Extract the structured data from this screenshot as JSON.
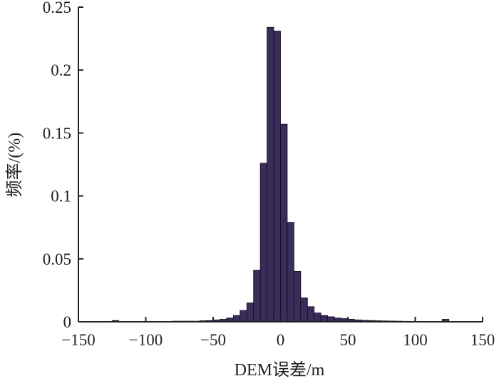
{
  "chart_data": {
    "type": "bar",
    "title": "",
    "xlabel": "DEM误差/m",
    "ylabel": "频率/(%)",
    "xlim": [
      -150,
      150
    ],
    "ylim": [
      0,
      0.25
    ],
    "xticks": [
      "−150",
      "−100",
      "−50",
      "0",
      "50",
      "100",
      "150"
    ],
    "yticks": [
      "0",
      "0.05",
      "0.1",
      "0.15",
      "0.2",
      "0.25"
    ],
    "bin_width": 5,
    "grid": false,
    "bar_color": "#3a2d5a",
    "bins": [
      {
        "x": -122.5,
        "value": 0.001
      },
      {
        "x": -77.5,
        "value": 0.0005
      },
      {
        "x": -72.5,
        "value": 0.0005
      },
      {
        "x": -67.5,
        "value": 0.0005
      },
      {
        "x": -62.5,
        "value": 0.0005
      },
      {
        "x": -57.5,
        "value": 0.0008
      },
      {
        "x": -52.5,
        "value": 0.001
      },
      {
        "x": -47.5,
        "value": 0.0015
      },
      {
        "x": -42.5,
        "value": 0.002
      },
      {
        "x": -37.5,
        "value": 0.003
      },
      {
        "x": -32.5,
        "value": 0.005
      },
      {
        "x": -27.5,
        "value": 0.009
      },
      {
        "x": -22.5,
        "value": 0.015
      },
      {
        "x": -17.5,
        "value": 0.041
      },
      {
        "x": -12.5,
        "value": 0.126
      },
      {
        "x": -7.5,
        "value": 0.234
      },
      {
        "x": -2.5,
        "value": 0.231
      },
      {
        "x": 2.5,
        "value": 0.157
      },
      {
        "x": 7.5,
        "value": 0.079
      },
      {
        "x": 12.5,
        "value": 0.04
      },
      {
        "x": 17.5,
        "value": 0.019
      },
      {
        "x": 22.5,
        "value": 0.012
      },
      {
        "x": 27.5,
        "value": 0.007
      },
      {
        "x": 32.5,
        "value": 0.005
      },
      {
        "x": 37.5,
        "value": 0.004
      },
      {
        "x": 42.5,
        "value": 0.003
      },
      {
        "x": 47.5,
        "value": 0.0025
      },
      {
        "x": 52.5,
        "value": 0.002
      },
      {
        "x": 57.5,
        "value": 0.0015
      },
      {
        "x": 62.5,
        "value": 0.0012
      },
      {
        "x": 67.5,
        "value": 0.001
      },
      {
        "x": 72.5,
        "value": 0.0008
      },
      {
        "x": 77.5,
        "value": 0.0007
      },
      {
        "x": 82.5,
        "value": 0.0006
      },
      {
        "x": 87.5,
        "value": 0.0005
      },
      {
        "x": 92.5,
        "value": 0.0004
      },
      {
        "x": 97.5,
        "value": 0.0003
      },
      {
        "x": 122.5,
        "value": 0.002
      }
    ]
  }
}
